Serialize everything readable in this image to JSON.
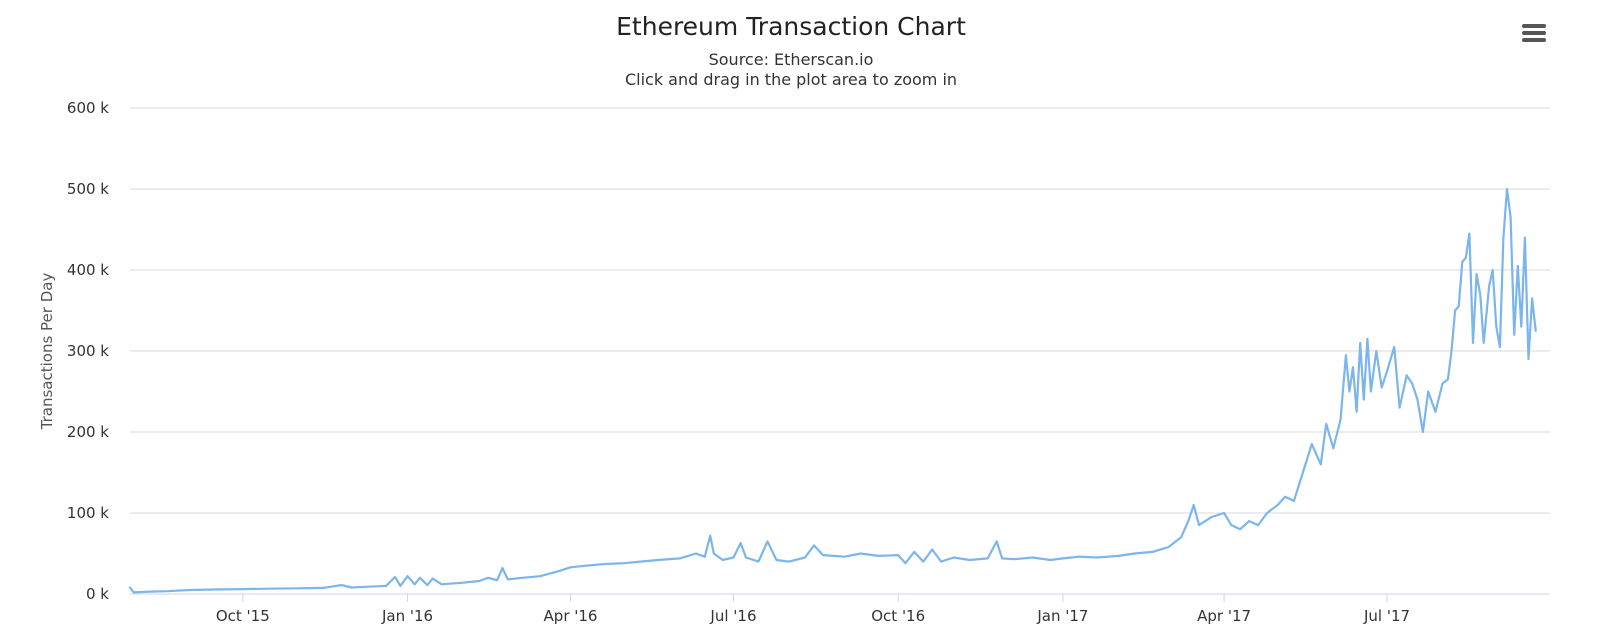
{
  "chart_data": {
    "type": "line",
    "title": "Ethereum Transaction Chart",
    "subtitle": "Source: Etherscan.io",
    "hint": "Click and drag in the plot area to zoom in",
    "ylabel": "Transactions Per Day",
    "xlabel": "",
    "ylim": [
      0,
      600000
    ],
    "y_ticks": [
      {
        "value": 0,
        "label": "0 k"
      },
      {
        "value": 100000,
        "label": "100 k"
      },
      {
        "value": 200000,
        "label": "200 k"
      },
      {
        "value": 300000,
        "label": "300 k"
      },
      {
        "value": 400000,
        "label": "400 k"
      },
      {
        "value": 500000,
        "label": "500 k"
      },
      {
        "value": 600000,
        "label": "600 k"
      }
    ],
    "x_range": [
      "2015-07-30",
      "2017-09-30"
    ],
    "x_ticks": [
      {
        "date": "2015-10-01",
        "label": "Oct '15"
      },
      {
        "date": "2016-01-01",
        "label": "Jan '16"
      },
      {
        "date": "2016-04-01",
        "label": "Apr '16"
      },
      {
        "date": "2016-07-01",
        "label": "Jul '16"
      },
      {
        "date": "2016-10-01",
        "label": "Oct '16"
      },
      {
        "date": "2017-01-01",
        "label": "Jan '17"
      },
      {
        "date": "2017-04-01",
        "label": "Apr '17"
      },
      {
        "date": "2017-07-01",
        "label": "Jul '17"
      }
    ],
    "grid": true,
    "legend": "none",
    "series": [
      {
        "color": "#7cb5ec",
        "points": [
          [
            "2015-07-30",
            8000
          ],
          [
            "2015-08-01",
            2000
          ],
          [
            "2015-08-10",
            3000
          ],
          [
            "2015-08-20",
            3500
          ],
          [
            "2015-09-01",
            5000
          ],
          [
            "2015-09-15",
            5500
          ],
          [
            "2015-10-01",
            6000
          ],
          [
            "2015-10-15",
            6500
          ],
          [
            "2015-11-01",
            7000
          ],
          [
            "2015-11-15",
            7500
          ],
          [
            "2015-11-25",
            11000
          ],
          [
            "2015-12-01",
            8000
          ],
          [
            "2015-12-10",
            9000
          ],
          [
            "2015-12-20",
            10000
          ],
          [
            "2015-12-25",
            21000
          ],
          [
            "2015-12-28",
            10000
          ],
          [
            "2016-01-01",
            22000
          ],
          [
            "2016-01-05",
            12000
          ],
          [
            "2016-01-08",
            20000
          ],
          [
            "2016-01-12",
            11000
          ],
          [
            "2016-01-15",
            19000
          ],
          [
            "2016-01-20",
            12000
          ],
          [
            "2016-02-01",
            14000
          ],
          [
            "2016-02-10",
            16000
          ],
          [
            "2016-02-15",
            20000
          ],
          [
            "2016-02-20",
            17000
          ],
          [
            "2016-02-23",
            32000
          ],
          [
            "2016-02-26",
            18000
          ],
          [
            "2016-03-05",
            20000
          ],
          [
            "2016-03-15",
            22000
          ],
          [
            "2016-03-25",
            28000
          ],
          [
            "2016-04-01",
            33000
          ],
          [
            "2016-04-10",
            35000
          ],
          [
            "2016-04-20",
            37000
          ],
          [
            "2016-05-01",
            38000
          ],
          [
            "2016-05-10",
            40000
          ],
          [
            "2016-05-20",
            42000
          ],
          [
            "2016-06-01",
            44000
          ],
          [
            "2016-06-10",
            50000
          ],
          [
            "2016-06-15",
            46000
          ],
          [
            "2016-06-18",
            72000
          ],
          [
            "2016-06-20",
            50000
          ],
          [
            "2016-06-25",
            42000
          ],
          [
            "2016-07-01",
            45000
          ],
          [
            "2016-07-05",
            63000
          ],
          [
            "2016-07-08",
            45000
          ],
          [
            "2016-07-15",
            40000
          ],
          [
            "2016-07-20",
            65000
          ],
          [
            "2016-07-25",
            42000
          ],
          [
            "2016-08-01",
            40000
          ],
          [
            "2016-08-10",
            45000
          ],
          [
            "2016-08-15",
            60000
          ],
          [
            "2016-08-20",
            48000
          ],
          [
            "2016-09-01",
            46000
          ],
          [
            "2016-09-10",
            50000
          ],
          [
            "2016-09-20",
            47000
          ],
          [
            "2016-10-01",
            48000
          ],
          [
            "2016-10-05",
            38000
          ],
          [
            "2016-10-10",
            52000
          ],
          [
            "2016-10-15",
            40000
          ],
          [
            "2016-10-20",
            55000
          ],
          [
            "2016-10-25",
            40000
          ],
          [
            "2016-11-01",
            45000
          ],
          [
            "2016-11-10",
            42000
          ],
          [
            "2016-11-20",
            44000
          ],
          [
            "2016-11-25",
            65000
          ],
          [
            "2016-11-28",
            44000
          ],
          [
            "2016-12-05",
            43000
          ],
          [
            "2016-12-15",
            45000
          ],
          [
            "2016-12-25",
            42000
          ],
          [
            "2017-01-01",
            44000
          ],
          [
            "2017-01-10",
            46000
          ],
          [
            "2017-01-20",
            45000
          ],
          [
            "2017-02-01",
            47000
          ],
          [
            "2017-02-10",
            50000
          ],
          [
            "2017-02-20",
            52000
          ],
          [
            "2017-03-01",
            58000
          ],
          [
            "2017-03-08",
            70000
          ],
          [
            "2017-03-12",
            90000
          ],
          [
            "2017-03-15",
            110000
          ],
          [
            "2017-03-18",
            85000
          ],
          [
            "2017-03-25",
            95000
          ],
          [
            "2017-04-01",
            100000
          ],
          [
            "2017-04-05",
            85000
          ],
          [
            "2017-04-10",
            80000
          ],
          [
            "2017-04-15",
            90000
          ],
          [
            "2017-04-20",
            85000
          ],
          [
            "2017-04-25",
            100000
          ],
          [
            "2017-05-01",
            110000
          ],
          [
            "2017-05-05",
            120000
          ],
          [
            "2017-05-10",
            115000
          ],
          [
            "2017-05-15",
            150000
          ],
          [
            "2017-05-20",
            185000
          ],
          [
            "2017-05-25",
            160000
          ],
          [
            "2017-05-28",
            210000
          ],
          [
            "2017-06-01",
            180000
          ],
          [
            "2017-06-05",
            215000
          ],
          [
            "2017-06-08",
            295000
          ],
          [
            "2017-06-10",
            250000
          ],
          [
            "2017-06-12",
            280000
          ],
          [
            "2017-06-14",
            225000
          ],
          [
            "2017-06-16",
            310000
          ],
          [
            "2017-06-18",
            240000
          ],
          [
            "2017-06-20",
            315000
          ],
          [
            "2017-06-22",
            250000
          ],
          [
            "2017-06-25",
            300000
          ],
          [
            "2017-06-28",
            255000
          ],
          [
            "2017-07-01",
            275000
          ],
          [
            "2017-07-05",
            305000
          ],
          [
            "2017-07-08",
            230000
          ],
          [
            "2017-07-12",
            270000
          ],
          [
            "2017-07-15",
            260000
          ],
          [
            "2017-07-18",
            240000
          ],
          [
            "2017-07-21",
            200000
          ],
          [
            "2017-07-24",
            250000
          ],
          [
            "2017-07-28",
            225000
          ],
          [
            "2017-08-01",
            260000
          ],
          [
            "2017-08-04",
            265000
          ],
          [
            "2017-08-06",
            300000
          ],
          [
            "2017-08-08",
            350000
          ],
          [
            "2017-08-10",
            355000
          ],
          [
            "2017-08-12",
            410000
          ],
          [
            "2017-08-14",
            415000
          ],
          [
            "2017-08-16",
            445000
          ],
          [
            "2017-08-18",
            310000
          ],
          [
            "2017-08-20",
            395000
          ],
          [
            "2017-08-22",
            370000
          ],
          [
            "2017-08-24",
            310000
          ],
          [
            "2017-08-27",
            380000
          ],
          [
            "2017-08-29",
            400000
          ],
          [
            "2017-08-31",
            330000
          ],
          [
            "2017-09-02",
            305000
          ],
          [
            "2017-09-04",
            440000
          ],
          [
            "2017-09-06",
            500000
          ],
          [
            "2017-09-08",
            465000
          ],
          [
            "2017-09-10",
            320000
          ],
          [
            "2017-09-12",
            405000
          ],
          [
            "2017-09-14",
            330000
          ],
          [
            "2017-09-16",
            440000
          ],
          [
            "2017-09-18",
            290000
          ],
          [
            "2017-09-20",
            365000
          ],
          [
            "2017-09-22",
            325000
          ]
        ]
      }
    ]
  }
}
